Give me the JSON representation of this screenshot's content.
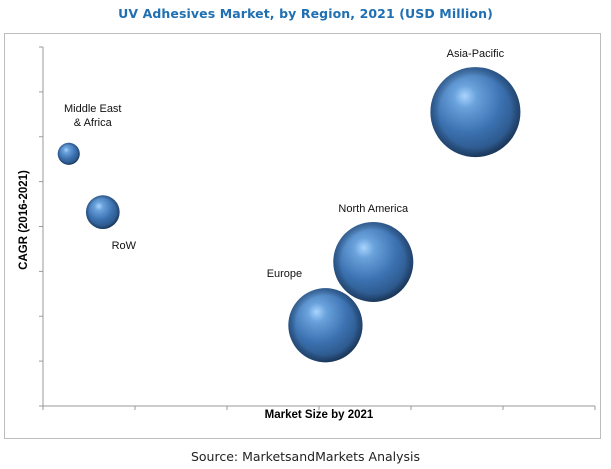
{
  "chart_data": {
    "type": "bubble",
    "title": "UV Adhesives Market, by Region, 2021 (USD Million)",
    "xlabel": "Market Size by 2021",
    "ylabel": "CAGR (2016-2021)",
    "xlim": [
      0,
      6
    ],
    "ylim": [
      0,
      8
    ],
    "x_ticks": 7,
    "y_ticks": 9,
    "tick_labels_shown": false,
    "grid": false,
    "legend": "none",
    "size_note": "relative bubble area, Asia-Pacific = 100",
    "bubble_color": "#3f74b4",
    "series": [
      {
        "name": "Asia-Pacific",
        "x": 4.7,
        "y": 6.55,
        "size": 100,
        "label_position": "top"
      },
      {
        "name": "North America",
        "x": 3.59,
        "y": 3.21,
        "size": 79,
        "label_position": "top"
      },
      {
        "name": "Europe",
        "x": 3.07,
        "y": 1.8,
        "size": 68,
        "label_position": "top-left"
      },
      {
        "name": "Middle East\n& Africa",
        "x": 0.28,
        "y": 5.62,
        "size": 6,
        "label_position": "top-right"
      },
      {
        "name": "RoW",
        "x": 0.65,
        "y": 4.32,
        "size": 14,
        "label_position": "bottom-right"
      }
    ]
  },
  "source": "Source: MarketsandMarkets Analysis"
}
